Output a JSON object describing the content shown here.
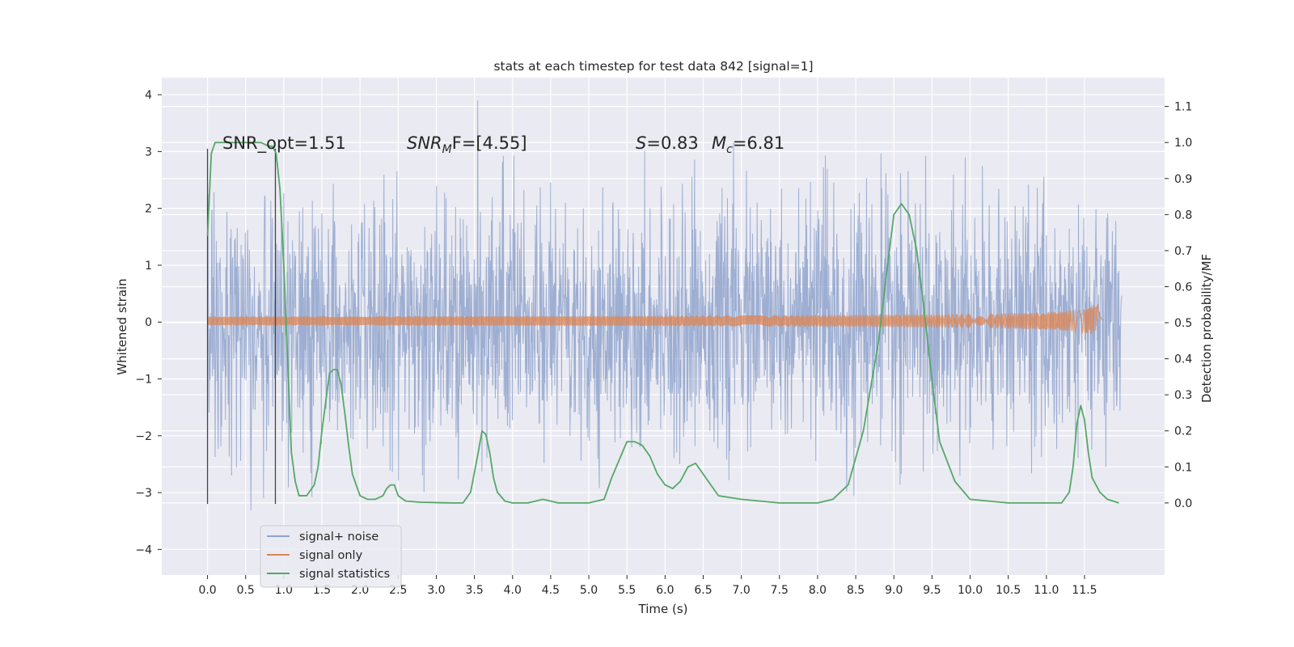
{
  "chart_data": {
    "type": "line",
    "title": "stats at each timestep for test data 842 [signal=1]",
    "xlabel": "Time (s)",
    "ylabel": "Whitened strain",
    "ylabel_right": "Detection probability/MF",
    "xlim": [
      -0.6,
      12.55
    ],
    "ylim": [
      -4.45,
      4.3
    ],
    "ylim_right": [
      -0.2,
      1.18
    ],
    "xticks": [
      "0.0",
      "0.5",
      "1.0",
      "1.5",
      "2.0",
      "2.5",
      "3.0",
      "3.5",
      "4.0",
      "4.5",
      "5.0",
      "5.5",
      "6.0",
      "6.5",
      "7.0",
      "7.5",
      "8.0",
      "8.5",
      "9.0",
      "9.5",
      "10.0",
      "10.5",
      "11.0",
      "11.5"
    ],
    "yticks_left": [
      "4",
      "3",
      "2",
      "1",
      "0",
      "−1",
      "−2",
      "−3",
      "−4"
    ],
    "yticks_right": [
      "1.1",
      "1.0",
      "0.9",
      "0.8",
      "0.7",
      "0.6",
      "0.5",
      "0.4",
      "0.3",
      "0.2",
      "0.1",
      "0.0"
    ],
    "grid": true,
    "background": "#eaeaf2",
    "colors": {
      "noise": "#8fa3cc",
      "signal": "#dd8452",
      "stats": "#55a868",
      "marker": "#444444"
    },
    "annotations": {
      "snr_opt": "SNR_opt=1.51",
      "snr_mf_base": "SNR",
      "snr_mf_sub": "M",
      "snr_mf_rest": "F=[4.55]",
      "s_label": "S",
      "s_value": "=0.83",
      "mc_base": "M",
      "mc_sub": "c",
      "mc_value": "=6.81"
    },
    "markers_x": [
      0.0,
      0.89
    ],
    "legend": {
      "placement": "lower-left",
      "entries": [
        "signal+ noise",
        "signal only",
        "signal statistics"
      ]
    },
    "series": [
      {
        "name": "signal+ noise",
        "kind": "noise",
        "x_range": [
          0.0,
          11.99
        ],
        "std": 1.0,
        "peak_range": [
          2.5,
          3.8
        ],
        "trough_range": [
          -2.3,
          -4.0
        ]
      },
      {
        "name": "signal only",
        "kind": "chirp",
        "x_range": [
          0.0,
          11.75
        ],
        "peak_amplitude": 0.3,
        "merger_time": 11.67
      },
      {
        "name": "signal statistics",
        "axis": "right",
        "x": [
          0.0,
          0.05,
          0.1,
          0.2,
          0.3,
          0.4,
          0.5,
          0.6,
          0.7,
          0.8,
          0.85,
          0.9,
          0.95,
          1.0,
          1.05,
          1.1,
          1.15,
          1.2,
          1.3,
          1.4,
          1.45,
          1.5,
          1.55,
          1.6,
          1.65,
          1.7,
          1.75,
          1.8,
          1.85,
          1.9,
          2.0,
          2.1,
          2.2,
          2.3,
          2.35,
          2.4,
          2.45,
          2.5,
          2.6,
          2.8,
          3.0,
          3.2,
          3.35,
          3.45,
          3.55,
          3.6,
          3.65,
          3.7,
          3.75,
          3.8,
          3.9,
          4.0,
          4.2,
          4.4,
          4.6,
          4.8,
          5.0,
          5.2,
          5.3,
          5.4,
          5.5,
          5.6,
          5.7,
          5.8,
          5.9,
          6.0,
          6.1,
          6.2,
          6.3,
          6.4,
          6.5,
          6.7,
          7.0,
          7.5,
          8.0,
          8.2,
          8.4,
          8.6,
          8.8,
          8.9,
          9.0,
          9.1,
          9.2,
          9.3,
          9.4,
          9.5,
          9.6,
          9.8,
          10.0,
          10.5,
          11.0,
          11.2,
          11.3,
          11.35,
          11.4,
          11.45,
          11.5,
          11.55,
          11.6,
          11.7,
          11.8,
          11.95
        ],
        "y": [
          0.74,
          0.97,
          1.0,
          1.0,
          1.0,
          1.0,
          1.0,
          1.0,
          1.0,
          0.99,
          0.99,
          0.97,
          0.87,
          0.66,
          0.4,
          0.14,
          0.06,
          0.02,
          0.02,
          0.05,
          0.1,
          0.2,
          0.28,
          0.36,
          0.37,
          0.37,
          0.33,
          0.25,
          0.16,
          0.08,
          0.02,
          0.01,
          0.01,
          0.02,
          0.04,
          0.05,
          0.05,
          0.02,
          0.005,
          0.002,
          0.001,
          0.0,
          0.0,
          0.03,
          0.14,
          0.2,
          0.19,
          0.14,
          0.07,
          0.03,
          0.005,
          0.0,
          0.0,
          0.01,
          0.0,
          0.0,
          0.0,
          0.01,
          0.07,
          0.12,
          0.17,
          0.17,
          0.16,
          0.13,
          0.08,
          0.05,
          0.04,
          0.06,
          0.1,
          0.11,
          0.08,
          0.02,
          0.01,
          0.0,
          0.0,
          0.01,
          0.05,
          0.2,
          0.45,
          0.63,
          0.8,
          0.83,
          0.8,
          0.7,
          0.53,
          0.34,
          0.17,
          0.06,
          0.01,
          0.0,
          0.0,
          0.0,
          0.03,
          0.1,
          0.22,
          0.27,
          0.23,
          0.14,
          0.07,
          0.03,
          0.01,
          0.0
        ]
      }
    ]
  }
}
